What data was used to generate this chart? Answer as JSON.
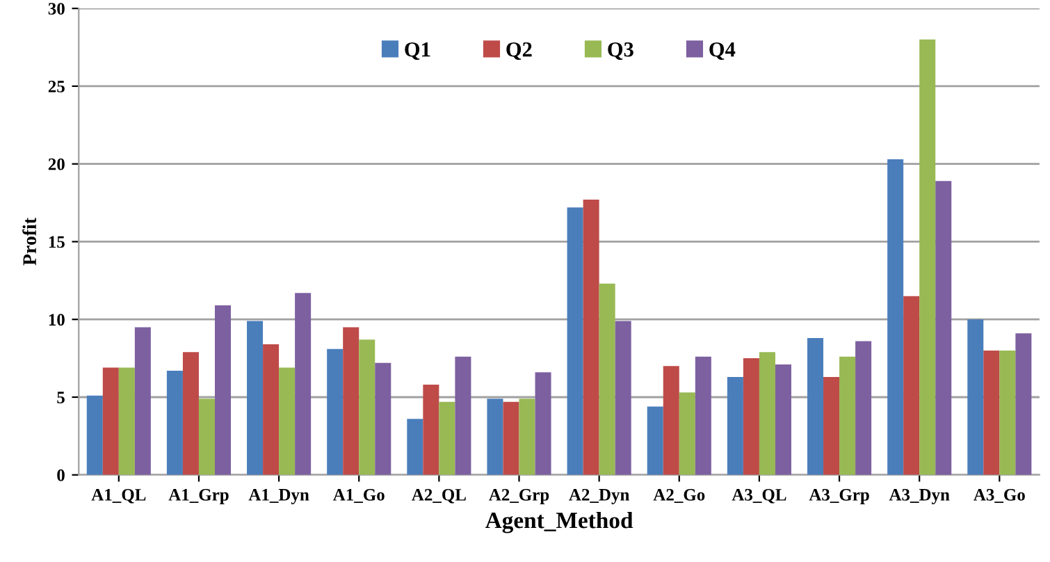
{
  "chart_data": {
    "type": "bar",
    "xlabel": "Agent_Method",
    "ylabel": "Profit",
    "categories": [
      "A1_QL",
      "A1_Grp",
      "A1_Dyn",
      "A1_Go",
      "A2_QL",
      "A2_Grp",
      "A2_Dyn",
      "A2_Go",
      "A3_QL",
      "A3_Grp",
      "A3_Dyn",
      "A3_Go"
    ],
    "series": [
      {
        "name": "Q1",
        "color": "#4a7ebb",
        "values": [
          5.1,
          6.7,
          9.9,
          8.1,
          3.6,
          4.9,
          17.2,
          4.4,
          6.3,
          8.8,
          20.3,
          10
        ]
      },
      {
        "name": "Q2",
        "color": "#be4b48",
        "values": [
          6.9,
          7.9,
          8.4,
          9.5,
          5.8,
          4.7,
          17.7,
          7.0,
          7.5,
          6.3,
          11.5,
          8.0
        ]
      },
      {
        "name": "Q3",
        "color": "#98b954",
        "values": [
          6.9,
          4.9,
          6.9,
          8.7,
          4.7,
          4.9,
          12.3,
          5.3,
          7.9,
          7.6,
          28,
          8.0
        ]
      },
      {
        "name": "Q4",
        "color": "#7d60a0",
        "values": [
          9.5,
          10.9,
          11.7,
          7.2,
          7.6,
          6.6,
          9.9,
          7.6,
          7.1,
          8.6,
          18.9,
          9.1
        ]
      }
    ],
    "ylim": [
      0,
      30
    ],
    "yticks": [
      0,
      5,
      10,
      15,
      20,
      25,
      30
    ],
    "grid": "y",
    "legend": "top"
  }
}
